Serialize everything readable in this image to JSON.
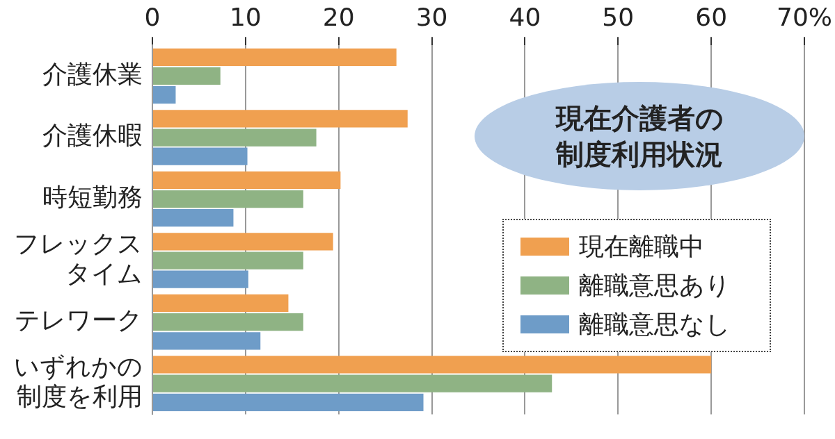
{
  "chart_data": {
    "type": "bar",
    "orientation": "horizontal",
    "title": "現在介護者の制度利用状況",
    "categories": [
      "介護休業",
      "介護休暇",
      "時短勤務",
      "フレックスタイム",
      "テレワーク",
      "いずれかの制度を利用"
    ],
    "series": [
      {
        "name": "現在離職中",
        "color": "#f0a050",
        "values": [
          26.2,
          27.4,
          20.2,
          19.4,
          14.6,
          60.0
        ]
      },
      {
        "name": "離職意思あり",
        "color": "#8fb384",
        "values": [
          7.3,
          17.6,
          16.2,
          16.2,
          16.2,
          42.9
        ]
      },
      {
        "name": "離職意思なし",
        "color": "#6e9cc8",
        "values": [
          2.5,
          10.2,
          8.7,
          10.3,
          11.6,
          29.1
        ]
      }
    ],
    "xlim": [
      0,
      70
    ],
    "xticks": [
      0,
      10,
      20,
      30,
      40,
      50,
      60,
      {
        "value": 70,
        "label": "70%"
      }
    ],
    "grid": "x",
    "legend": "right"
  }
}
